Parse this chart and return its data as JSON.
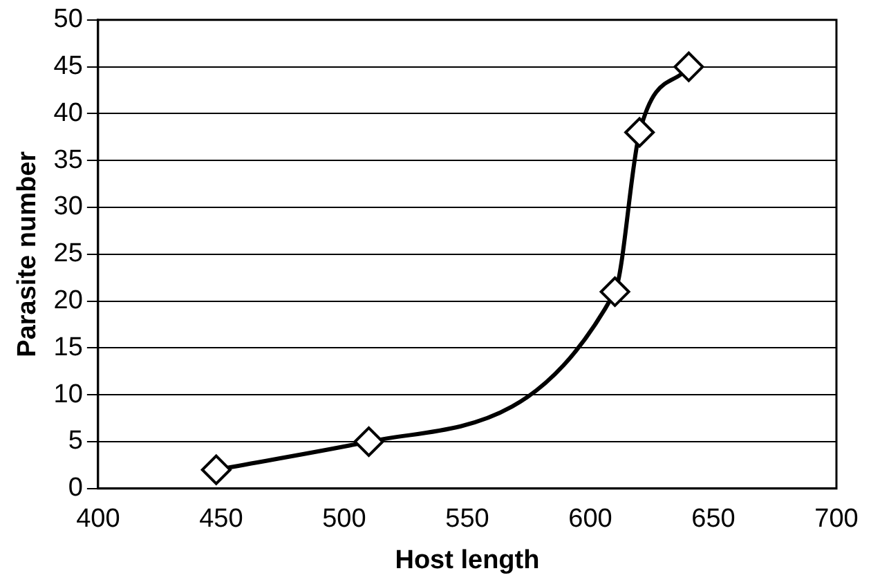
{
  "chart_data": {
    "type": "line",
    "xlabel": "Host length",
    "ylabel": "Parasite number",
    "x": [
      448,
      510,
      610,
      620,
      640
    ],
    "values": [
      2,
      5,
      21,
      38,
      45
    ],
    "color": "#000000",
    "xlim": [
      400,
      700
    ],
    "xticks": [
      400,
      450,
      500,
      550,
      600,
      650,
      700
    ],
    "ylim": [
      0,
      50
    ],
    "yticks": [
      0,
      5,
      10,
      15,
      20,
      25,
      30,
      35,
      40,
      45,
      50
    ],
    "grid": "y",
    "legend": false,
    "marker": "diamond",
    "line_style": "solid"
  }
}
